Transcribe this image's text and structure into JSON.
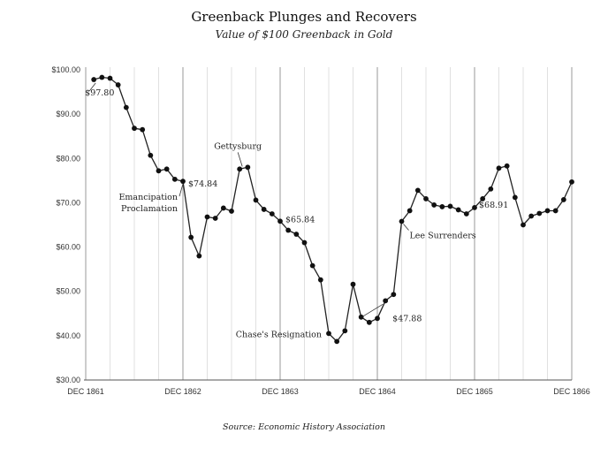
{
  "chart_data": {
    "type": "line",
    "title": "Greenback Plunges and Recovers",
    "subtitle": "Value of $100 Greenback in Gold",
    "source": "Source: Economic History Association",
    "ylim": [
      30,
      100
    ],
    "yticks": [
      {
        "value": 30,
        "label": "$30.00"
      },
      {
        "value": 40,
        "label": "$40.00"
      },
      {
        "value": 50,
        "label": "$50.00"
      },
      {
        "value": 60,
        "label": "$60.00"
      },
      {
        "value": 70,
        "label": "$70.00"
      },
      {
        "value": 80,
        "label": "$80.00"
      },
      {
        "value": 90,
        "label": "$90.00"
      },
      {
        "value": 100,
        "label": "$100.00"
      }
    ],
    "xticks": [
      "DEC 1861",
      "DEC 1862",
      "DEC 1863",
      "DEC 1864",
      "DEC 1865",
      "DEC 1866"
    ],
    "grid": true,
    "months_per_xtick": 12,
    "x_start_label": "DEC 1861",
    "series": [
      {
        "values": [
          {
            "x": "Jan 1862",
            "y": 97.8
          },
          {
            "x": "Feb 1862",
            "y": 98.3
          },
          {
            "x": "Mar 1862",
            "y": 98.1
          },
          {
            "x": "Apr 1862",
            "y": 96.6
          },
          {
            "x": "May 1862",
            "y": 91.5
          },
          {
            "x": "Jun 1862",
            "y": 86.8
          },
          {
            "x": "Jul 1862",
            "y": 86.5
          },
          {
            "x": "Aug 1862",
            "y": 80.7
          },
          {
            "x": "Sep 1862",
            "y": 77.2
          },
          {
            "x": "Oct 1862",
            "y": 77.6
          },
          {
            "x": "Nov 1862",
            "y": 75.3
          },
          {
            "x": "Dec 1862",
            "y": 74.84
          },
          {
            "x": "Jan 1863",
            "y": 62.2
          },
          {
            "x": "Feb 1863",
            "y": 58.0
          },
          {
            "x": "Mar 1863",
            "y": 66.8
          },
          {
            "x": "Apr 1863",
            "y": 66.5
          },
          {
            "x": "May 1863",
            "y": 68.8
          },
          {
            "x": "Jun 1863",
            "y": 68.1
          },
          {
            "x": "Jul 1863",
            "y": 77.6
          },
          {
            "x": "Aug 1863",
            "y": 78.0
          },
          {
            "x": "Sep 1863",
            "y": 70.6
          },
          {
            "x": "Oct 1863",
            "y": 68.5
          },
          {
            "x": "Nov 1863",
            "y": 67.5
          },
          {
            "x": "Dec 1863",
            "y": 65.84
          },
          {
            "x": "Jan 1864",
            "y": 63.8
          },
          {
            "x": "Feb 1864",
            "y": 62.9
          },
          {
            "x": "Mar 1864",
            "y": 61.0
          },
          {
            "x": "Apr 1864",
            "y": 55.8
          },
          {
            "x": "May 1864",
            "y": 52.6
          },
          {
            "x": "Jun 1864",
            "y": 40.5
          },
          {
            "x": "Jul 1864",
            "y": 38.7
          },
          {
            "x": "Aug 1864",
            "y": 41.1
          },
          {
            "x": "Sep 1864",
            "y": 51.6
          },
          {
            "x": "Oct 1864",
            "y": 44.2
          },
          {
            "x": "Nov 1864",
            "y": 43.0
          },
          {
            "x": "Dec 1864",
            "y": 43.9
          },
          {
            "x": "Jan 1865",
            "y": 47.88
          },
          {
            "x": "Feb 1865",
            "y": 49.3
          },
          {
            "x": "Mar 1865",
            "y": 65.8
          },
          {
            "x": "Apr 1865",
            "y": 68.2
          },
          {
            "x": "May 1865",
            "y": 72.8
          },
          {
            "x": "Jun 1865",
            "y": 70.9
          },
          {
            "x": "Jul 1865",
            "y": 69.5
          },
          {
            "x": "Aug 1865",
            "y": 69.1
          },
          {
            "x": "Sep 1865",
            "y": 69.2
          },
          {
            "x": "Oct 1865",
            "y": 68.4
          },
          {
            "x": "Nov 1865",
            "y": 67.5
          },
          {
            "x": "Dec 1865",
            "y": 68.91
          },
          {
            "x": "Jan 1866",
            "y": 70.9
          },
          {
            "x": "Feb 1866",
            "y": 73.1
          },
          {
            "x": "Mar 1866",
            "y": 77.8
          },
          {
            "x": "Apr 1866",
            "y": 78.3
          },
          {
            "x": "May 1866",
            "y": 71.2
          },
          {
            "x": "Jun 1866",
            "y": 65.0
          },
          {
            "x": "Jul 1866",
            "y": 67.0
          },
          {
            "x": "Aug 1866",
            "y": 67.6
          },
          {
            "x": "Sep 1866",
            "y": 68.2
          },
          {
            "x": "Oct 1866",
            "y": 68.2
          },
          {
            "x": "Nov 1866",
            "y": 70.7
          },
          {
            "x": "Dec 1866",
            "y": 74.7
          }
        ]
      }
    ],
    "annotations": [
      {
        "text": "$97.80",
        "x": "Jan 1862",
        "y": 97.8
      },
      {
        "text": "$74.84",
        "x": "Dec 1862",
        "y": 74.84
      },
      {
        "text": "Emancipation",
        "x": "Dec 1862",
        "y": 74.84
      },
      {
        "text": "Proclamation",
        "x": "Dec 1862",
        "y": 74.84
      },
      {
        "text": "Gettysburg",
        "x": "Jul 1863",
        "y": 77.6
      },
      {
        "text": "$65.84",
        "x": "Dec 1863",
        "y": 65.84
      },
      {
        "text": "Chase's Resignation",
        "x": "Jun 1864",
        "y": 40.5
      },
      {
        "text": "$47.88",
        "x": "Jan 1865",
        "y": 47.88
      },
      {
        "text": "Lee Surrenders",
        "x": "Mar 1865",
        "y": 65.8
      },
      {
        "text": "$68.91",
        "x": "Dec 1865",
        "y": 68.91
      }
    ]
  }
}
